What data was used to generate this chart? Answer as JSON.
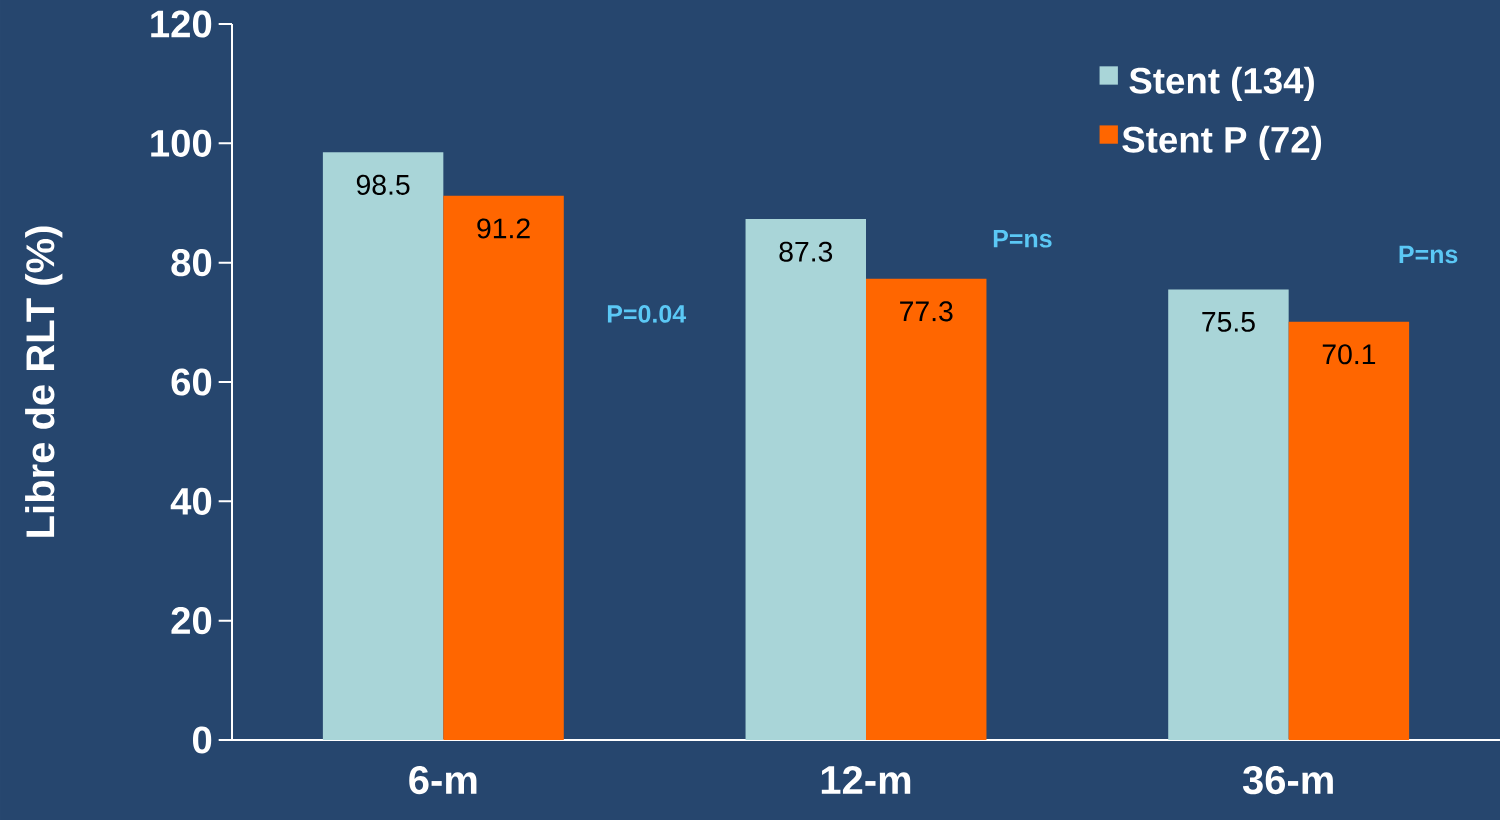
{
  "chart_data": {
    "type": "bar",
    "ylabel": "Libre de RLT (%)",
    "categories": [
      "6-m",
      "12-m",
      "36-m"
    ],
    "series": [
      {
        "name": "Stent (134)",
        "color": "#a9d5d8",
        "values": [
          98.5,
          87.3,
          75.5
        ]
      },
      {
        "name": "Stent P (72)",
        "color": "#ff6600",
        "values": [
          91.2,
          77.3,
          70.1
        ]
      }
    ],
    "ylim": [
      0,
      120
    ],
    "yticks": [
      0,
      20,
      40,
      60,
      80,
      100,
      120
    ],
    "data_labels": true,
    "grid": false,
    "legend": "top right",
    "annotations": [
      "P=0.04",
      "P=ns",
      "P=ns"
    ]
  }
}
